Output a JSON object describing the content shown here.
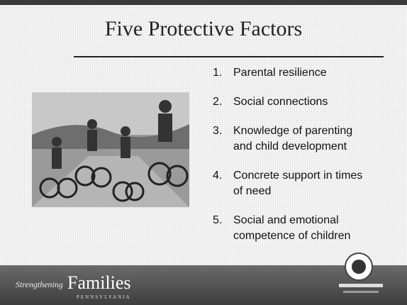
{
  "slide": {
    "title": "Five Protective Factors",
    "items": [
      {
        "number": "1.",
        "lines": [
          "Parental resilience"
        ]
      },
      {
        "number": "2.",
        "lines": [
          "Social connections"
        ]
      },
      {
        "number": "3.",
        "lines": [
          "Knowledge of parenting",
          "and child development"
        ]
      },
      {
        "number": "4.",
        "lines": [
          "Concrete support in times",
          "of need"
        ]
      },
      {
        "number": "5.",
        "lines": [
          "Social and emotional",
          "competence of children"
        ]
      }
    ],
    "footer": {
      "brand_small": "Strengthening",
      "brand_large": "Families",
      "state": "PENNSYLVANIA"
    }
  }
}
